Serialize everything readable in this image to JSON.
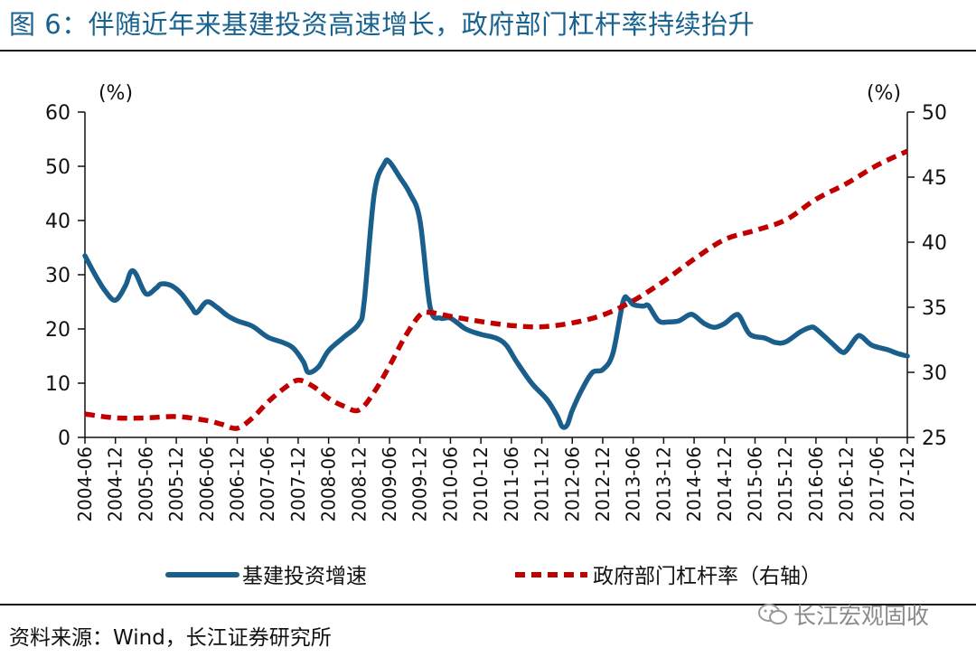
{
  "figure": {
    "title": "图 6：伴随近年来基建投资高速增长，政府部门杠杆率持续抬升",
    "source": "资料来源：Wind，长江证券研究所",
    "watermark": "长江宏观固收",
    "watermark_icon": "wechat-icon"
  },
  "chart_data": {
    "type": "line",
    "title": "",
    "xlabel": "",
    "y_left_unit": "(%)",
    "y_right_unit": "(%)",
    "y_left_lim": [
      0,
      60
    ],
    "y_left_ticks": [
      0,
      10,
      20,
      30,
      40,
      50,
      60
    ],
    "y_right_lim": [
      25,
      50
    ],
    "y_right_ticks": [
      25,
      30,
      35,
      40,
      45,
      50
    ],
    "grid": false,
    "legend_position": "bottom",
    "x_start": "2004-06",
    "x_end": "2017-12",
    "x_tick_labels": [
      "2004-06",
      "2004-12",
      "2005-06",
      "2005-12",
      "2006-06",
      "2006-12",
      "2007-06",
      "2007-12",
      "2008-06",
      "2008-12",
      "2009-06",
      "2009-12",
      "2010-06",
      "2010-12",
      "2011-06",
      "2011-12",
      "2012-06",
      "2012-12",
      "2013-06",
      "2013-12",
      "2014-06",
      "2014-12",
      "2015-06",
      "2015-12",
      "2016-06",
      "2016-12",
      "2017-06",
      "2017-12"
    ],
    "colors": {
      "infra": "#1a5e8c",
      "leverage": "#c00000"
    },
    "series": [
      {
        "name": "基建投资增速",
        "axis": "left",
        "style": "solid",
        "color": "#1a5e8c",
        "points": [
          [
            "2004-06",
            33.5
          ],
          [
            "2004-08",
            30.0
          ],
          [
            "2004-10",
            27.0
          ],
          [
            "2004-12",
            25.3
          ],
          [
            "2005-02",
            28.0
          ],
          [
            "2005-03",
            30.5
          ],
          [
            "2005-04",
            30.2
          ],
          [
            "2005-06",
            26.5
          ],
          [
            "2005-08",
            27.5
          ],
          [
            "2005-09",
            28.3
          ],
          [
            "2005-11",
            28.0
          ],
          [
            "2006-01",
            26.5
          ],
          [
            "2006-03",
            24.0
          ],
          [
            "2006-04",
            23.0
          ],
          [
            "2006-06",
            25.0
          ],
          [
            "2006-08",
            24.0
          ],
          [
            "2006-10",
            22.5
          ],
          [
            "2006-12",
            21.5
          ],
          [
            "2007-03",
            20.5
          ],
          [
            "2007-06",
            18.5
          ],
          [
            "2007-09",
            17.5
          ],
          [
            "2007-11",
            16.5
          ],
          [
            "2008-01",
            14.0
          ],
          [
            "2008-02",
            12.0
          ],
          [
            "2008-04",
            13.0
          ],
          [
            "2008-06",
            16.0
          ],
          [
            "2008-09",
            18.5
          ],
          [
            "2008-12",
            21.0
          ],
          [
            "2009-01",
            25.0
          ],
          [
            "2009-03",
            45.0
          ],
          [
            "2009-05",
            50.5
          ],
          [
            "2009-06",
            50.8
          ],
          [
            "2009-08",
            48.0
          ],
          [
            "2009-10",
            45.0
          ],
          [
            "2009-12",
            40.0
          ],
          [
            "2010-02",
            24.0
          ],
          [
            "2010-04",
            22.0
          ],
          [
            "2010-06",
            22.0
          ],
          [
            "2010-09",
            20.0
          ],
          [
            "2010-12",
            19.0
          ],
          [
            "2011-03",
            18.3
          ],
          [
            "2011-05",
            17.0
          ],
          [
            "2011-07",
            14.0
          ],
          [
            "2011-10",
            10.0
          ],
          [
            "2012-01",
            7.0
          ],
          [
            "2012-03",
            4.0
          ],
          [
            "2012-04",
            2.0
          ],
          [
            "2012-05",
            2.3
          ],
          [
            "2012-06",
            5.0
          ],
          [
            "2012-08",
            9.0
          ],
          [
            "2012-10",
            12.0
          ],
          [
            "2012-12",
            12.5
          ],
          [
            "2013-02",
            15.5
          ],
          [
            "2013-04",
            25.0
          ],
          [
            "2013-05",
            25.5
          ],
          [
            "2013-06",
            24.5
          ],
          [
            "2013-08",
            24.2
          ],
          [
            "2013-09",
            24.3
          ],
          [
            "2013-11",
            21.5
          ],
          [
            "2014-01",
            21.3
          ],
          [
            "2014-03",
            21.5
          ],
          [
            "2014-05",
            22.6
          ],
          [
            "2014-06",
            22.5
          ],
          [
            "2014-08",
            21.0
          ],
          [
            "2014-10",
            20.3
          ],
          [
            "2014-12",
            21.0
          ],
          [
            "2015-02",
            22.5
          ],
          [
            "2015-03",
            22.3
          ],
          [
            "2015-05",
            19.0
          ],
          [
            "2015-08",
            18.3
          ],
          [
            "2015-10",
            17.5
          ],
          [
            "2015-12",
            17.6
          ],
          [
            "2016-03",
            19.5
          ],
          [
            "2016-05",
            20.3
          ],
          [
            "2016-06",
            20.0
          ],
          [
            "2016-09",
            17.5
          ],
          [
            "2016-11",
            15.8
          ],
          [
            "2016-12",
            16.0
          ],
          [
            "2017-02",
            18.5
          ],
          [
            "2017-03",
            18.6
          ],
          [
            "2017-05",
            17.0
          ],
          [
            "2017-08",
            16.2
          ],
          [
            "2017-10",
            15.5
          ],
          [
            "2017-12",
            15.0
          ]
        ]
      },
      {
        "name": "政府部门杠杆率（右轴）",
        "axis": "right",
        "style": "dashed",
        "color": "#c00000",
        "points": [
          [
            "2004-06",
            26.8
          ],
          [
            "2004-12",
            26.5
          ],
          [
            "2005-06",
            26.5
          ],
          [
            "2005-12",
            26.6
          ],
          [
            "2006-06",
            26.3
          ],
          [
            "2006-09",
            26.0
          ],
          [
            "2006-12",
            25.7
          ],
          [
            "2007-03",
            26.5
          ],
          [
            "2007-06",
            27.7
          ],
          [
            "2007-09",
            28.7
          ],
          [
            "2007-12",
            29.4
          ],
          [
            "2008-03",
            28.9
          ],
          [
            "2008-06",
            28.0
          ],
          [
            "2008-09",
            27.4
          ],
          [
            "2008-12",
            27.1
          ],
          [
            "2009-03",
            28.5
          ],
          [
            "2009-06",
            30.5
          ],
          [
            "2009-09",
            32.7
          ],
          [
            "2009-12",
            34.4
          ],
          [
            "2010-02",
            34.6
          ],
          [
            "2010-06",
            34.3
          ],
          [
            "2010-09",
            34.1
          ],
          [
            "2010-12",
            33.9
          ],
          [
            "2011-06",
            33.6
          ],
          [
            "2011-12",
            33.5
          ],
          [
            "2012-06",
            33.8
          ],
          [
            "2012-12",
            34.4
          ],
          [
            "2013-06",
            35.5
          ],
          [
            "2013-12",
            37.0
          ],
          [
            "2014-06",
            38.7
          ],
          [
            "2014-12",
            40.2
          ],
          [
            "2015-06",
            40.9
          ],
          [
            "2015-12",
            41.7
          ],
          [
            "2016-06",
            43.3
          ],
          [
            "2016-12",
            44.5
          ],
          [
            "2017-06",
            45.9
          ],
          [
            "2017-12",
            47.0
          ]
        ]
      }
    ]
  }
}
